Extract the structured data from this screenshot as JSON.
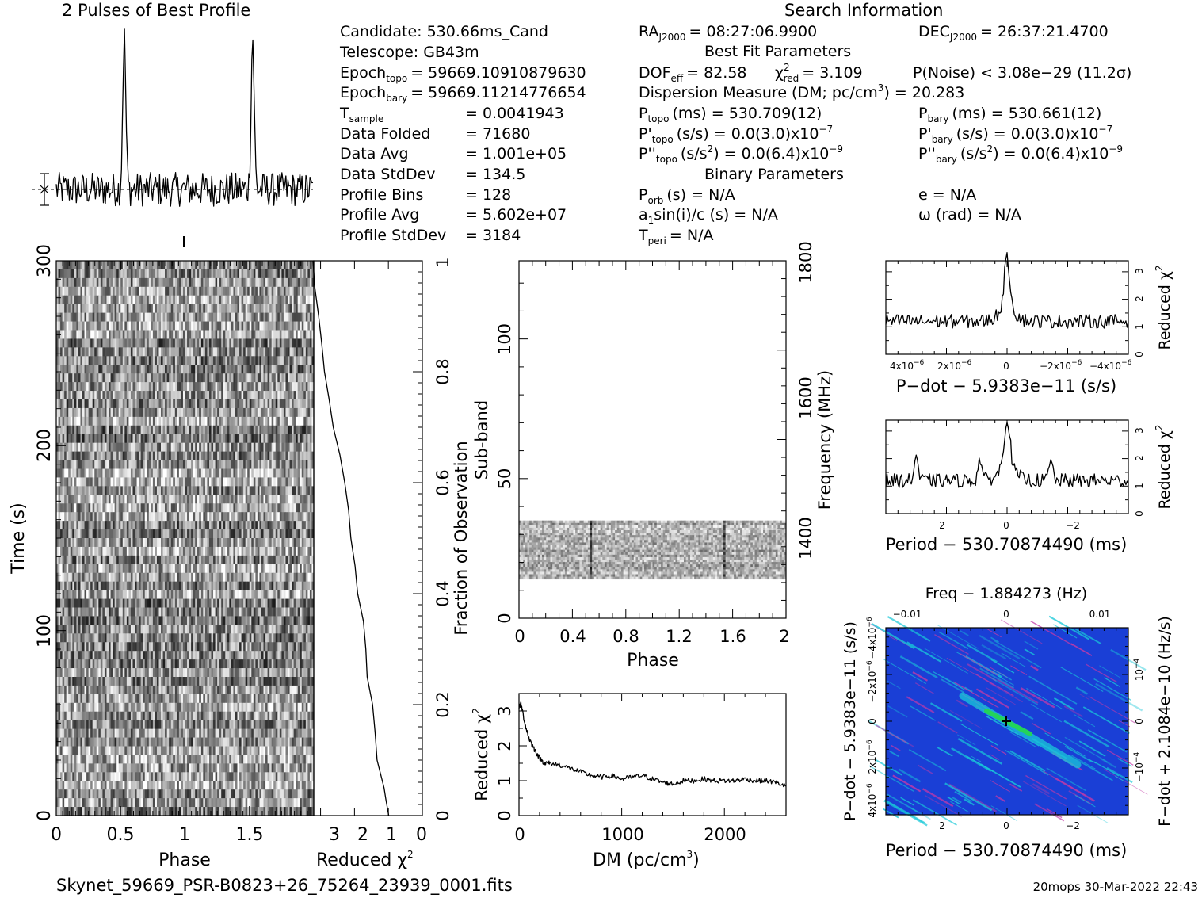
{
  "titles": {
    "profile": "2 Pulses of Best Profile",
    "search": "Search Information",
    "best_fit": "Best Fit Parameters",
    "binary": "Binary Parameters"
  },
  "info": {
    "candidate": "Candidate:  530.66ms_Cand",
    "telescope": "Telescope:  GB43m",
    "epoch_topo": "Epoch",
    "epoch_topo_sub": "topo",
    "epoch_topo_val": "= 59669.10910879630",
    "epoch_bary": "Epoch",
    "epoch_bary_sub": "bary",
    "epoch_bary_val": "= 59669.11214776654",
    "t_sample": "T",
    "t_sample_sub": "sample",
    "t_sample_val": "=   0.0041943",
    "data_folded": "Data Folded",
    "data_folded_val": "=   71680",
    "data_avg": "Data Avg",
    "data_avg_val": "=   1.001e+05",
    "data_stddev": "Data StdDev",
    "data_stddev_val": "=   134.5",
    "profile_bins": "Profile Bins",
    "profile_bins_val": "=   128",
    "profile_avg": "Profile Avg",
    "profile_avg_val": "=   5.602e+07",
    "profile_stddev": "Profile StdDev",
    "profile_stddev_val": "=   3184"
  },
  "search_info": {
    "ra": "RA",
    "ra_sub": "J2000",
    "ra_val": "= 08:27:06.9900",
    "dec": "DEC",
    "dec_sub": "J2000",
    "dec_val": "= 26:37:21.4700",
    "dof": "DOF",
    "dof_sub": "eff",
    "dof_val": "= 82.58",
    "chi_sym": "χ",
    "chi_sup": "2",
    "chi_sub": "red",
    "chi_val": "= 3.109",
    "pnoise": "P(Noise) < 3.08e−29   (11.2σ)",
    "dm": "Dispersion Measure (DM; pc/cm",
    "dm_sup": "3",
    "dm_val": ") = 20.283",
    "p_topo": "P",
    "p_topo_sub": "topo",
    "p_topo_val": "(ms)  =   530.709(12)",
    "p_bary": "P",
    "p_bary_sub": "bary",
    "p_bary_val": "(ms)  =   530.661(12)",
    "pd_topo": "P'",
    "pd_topo_sub": "topo",
    "pd_topo_val": "(s/s) = 0.0(3.0)x10",
    "pd_topo_exp": "−7",
    "pd_bary": "P'",
    "pd_bary_sub": "bary",
    "pd_bary_val": "(s/s) = 0.0(3.0)x10",
    "pd_bary_exp": "−7",
    "pdd_topo": "P''",
    "pdd_topo_sub": "topo",
    "pdd_topo_val": "(s/s",
    "pdd_topo_sup": "2",
    "pdd_topo_val2": ") = 0.0(6.4)x10",
    "pdd_topo_exp": "−9",
    "pdd_bary": "P''",
    "pdd_bary_sub": "bary",
    "pdd_bary_val": "(s/s",
    "pdd_bary_sup": "2",
    "pdd_bary_val2": ") = 0.0(6.4)x10",
    "pdd_bary_exp": "−9",
    "p_orb": "P",
    "p_orb_sub": "orb",
    "p_orb_val": "(s) = N/A",
    "e_val": "e = N/A",
    "a1": "a",
    "a1_sub": "1",
    "a1_val": "sin(i)/c (s) = N/A",
    "omega": "ω (rad) = N/A",
    "t_peri": "T",
    "t_peri_sub": "peri",
    "t_peri_val": "= N/A"
  },
  "footer": {
    "filename": "Skynet_59669_PSR-B0823+26_75264_23939_0001.fits",
    "stamp": "20mops 30-Mar-2022 22:43"
  },
  "colors": {
    "ppdot_bg": "#1a3fd6",
    "ppdot_streak": "#19c8d8",
    "ppdot_peak": "#23d35a",
    "noise_dark": "#333333",
    "noise_light": "#f2f2f2"
  },
  "chart_data": [
    {
      "type": "line",
      "name": "profile",
      "title": "2 Pulses of Best Profile",
      "xlim": [
        0,
        2
      ],
      "peaks_at_phase": [
        0.53,
        1.53
      ],
      "baseline_rel": 0.0,
      "peak_rel": 1.0
    },
    {
      "type": "heatmap",
      "name": "time-phase",
      "xlabel": "Phase",
      "ylabel": "Time (s)",
      "xlim": [
        0,
        2
      ],
      "ylim": [
        0,
        300
      ],
      "x_ticks": [
        "0",
        "0.5",
        "1",
        "1.5"
      ],
      "y_ticks": [
        "0",
        "100",
        "200",
        "300"
      ]
    },
    {
      "type": "line",
      "name": "reduced-chi2-vs-time",
      "xlabel": "Reduced χ",
      "xlabel_sup": "2",
      "ylabel": "Fraction of Observation",
      "xlim": [
        0,
        3.2
      ],
      "ylim": [
        0,
        1
      ],
      "x_ticks": [
        "3",
        "2",
        "1",
        "0"
      ],
      "y_ticks": [
        "0",
        "0.2",
        "0.4",
        "0.6",
        "0.8",
        "1"
      ],
      "x": [
        1.0,
        1.05,
        1.15,
        1.3,
        1.4,
        1.5,
        1.6,
        1.7,
        1.75,
        1.9,
        2.0,
        2.1,
        2.2,
        2.3,
        2.45,
        2.6,
        2.75,
        2.85,
        2.95,
        3.05,
        3.15,
        3.2
      ],
      "y": [
        0.0,
        0.03,
        0.05,
        0.1,
        0.15,
        0.2,
        0.25,
        0.3,
        0.35,
        0.4,
        0.45,
        0.5,
        0.55,
        0.6,
        0.65,
        0.7,
        0.75,
        0.8,
        0.85,
        0.9,
        0.95,
        1.0
      ]
    },
    {
      "type": "heatmap",
      "name": "subband-phase",
      "xlabel": "Phase",
      "ylabel": "Sub-band",
      "ylabel2": "Frequency (MHz)",
      "xlim": [
        0,
        2
      ],
      "ylim": [
        0,
        128
      ],
      "x_ticks": [
        "0",
        "0.4",
        "0.8",
        "1.2",
        "1.6",
        "2"
      ],
      "y_ticks": [
        "0",
        "50",
        "100"
      ],
      "y2_ticks": [
        "1400",
        "1600",
        "1800"
      ],
      "band_rows": [
        14,
        35
      ],
      "pulse_phases": [
        0.53,
        1.53
      ]
    },
    {
      "type": "line",
      "name": "chi2-vs-dm",
      "xlabel": "DM (pc/cm",
      "xlabel_sup": "3",
      "xlabel_end": ")",
      "ylabel": "Reduced χ",
      "ylabel_sup": "2",
      "xlim": [
        0,
        2600
      ],
      "ylim": [
        0,
        3.5
      ],
      "x_ticks": [
        "0",
        "1000",
        "2000"
      ],
      "y_ticks": [
        "0",
        "1",
        "2",
        "3"
      ],
      "x": [
        0,
        20,
        60,
        100,
        150,
        200,
        250,
        300,
        400,
        500,
        600,
        700,
        800,
        900,
        1000,
        1100,
        1200,
        1300,
        1400,
        1500,
        1600,
        1700,
        1800,
        1900,
        2000,
        2100,
        2200,
        2300,
        2400,
        2500,
        2600
      ],
      "y": [
        3.1,
        3.2,
        2.6,
        2.2,
        1.9,
        1.65,
        1.5,
        1.5,
        1.45,
        1.35,
        1.25,
        1.15,
        1.1,
        1.15,
        1.05,
        1.1,
        1.15,
        1.05,
        0.95,
        0.9,
        1.0,
        1.0,
        1.05,
        1.0,
        1.0,
        1.0,
        1.05,
        1.0,
        1.0,
        0.95,
        0.85
      ]
    },
    {
      "type": "line",
      "name": "chi2-vs-pdot",
      "xlabel": "P−dot − 5.9383e−11 (s/s)",
      "ylabel": "Reduced χ",
      "ylabel_sup": "2",
      "xlim": [
        5e-06,
        -5e-06
      ],
      "ylim": [
        0,
        3.4
      ],
      "x_ticks": [
        "4x10",
        "2x10",
        "0",
        "−2x10",
        "−4x10"
      ],
      "x_tick_exp": [
        "−6",
        "−6",
        "",
        "−6",
        "−6"
      ],
      "y_ticks": [
        "0",
        "1",
        "2",
        "3"
      ],
      "peak_x": 0,
      "peak_y": 3.1,
      "baseline_y": 1.2
    },
    {
      "type": "line",
      "name": "chi2-vs-period",
      "xlabel": "Period − 530.70874490 (ms)",
      "ylabel": "Reduced χ",
      "ylabel_sup": "2",
      "xlim": [
        3.6,
        -3.6
      ],
      "ylim": [
        0,
        3.4
      ],
      "x_ticks": [
        "2",
        "0",
        "−2"
      ],
      "y_ticks": [
        "0",
        "1",
        "2",
        "3"
      ],
      "peak_x": 0,
      "peak_y": 3.1,
      "side_peaks": [
        [
          2.7,
          2.1
        ],
        [
          0.8,
          2.0
        ],
        [
          -1.3,
          1.9
        ]
      ],
      "baseline_y": 1.2
    },
    {
      "type": "heatmap",
      "name": "p-pdot",
      "title": "Freq − 1.884273 (Hz)",
      "xlabel": "Period − 530.70874490 (ms)",
      "ylabel": "P−dot − 5.9383e−11 (s/s)",
      "ylabel2": "F−dot + 2.1084e−10 (Hz/s)",
      "xlim": [
        3.6,
        -3.6
      ],
      "ylim": [
        5e-06,
        -5e-06
      ],
      "x_ticks": [
        "2",
        "0",
        "−2"
      ],
      "top_ticks": [
        "−0.01",
        "0",
        "0.01"
      ],
      "left_ticks": [
        "4x10",
        "2x10",
        "0",
        "−2x10",
        "−4x10"
      ],
      "left_tick_exp": [
        "−6",
        "−6",
        "",
        "−6",
        "−6"
      ],
      "right_ticks": [
        "−10",
        "0",
        "10"
      ],
      "right_tick_exp": [
        "−4",
        "",
        "−4"
      ],
      "peak": [
        0,
        0
      ]
    }
  ]
}
